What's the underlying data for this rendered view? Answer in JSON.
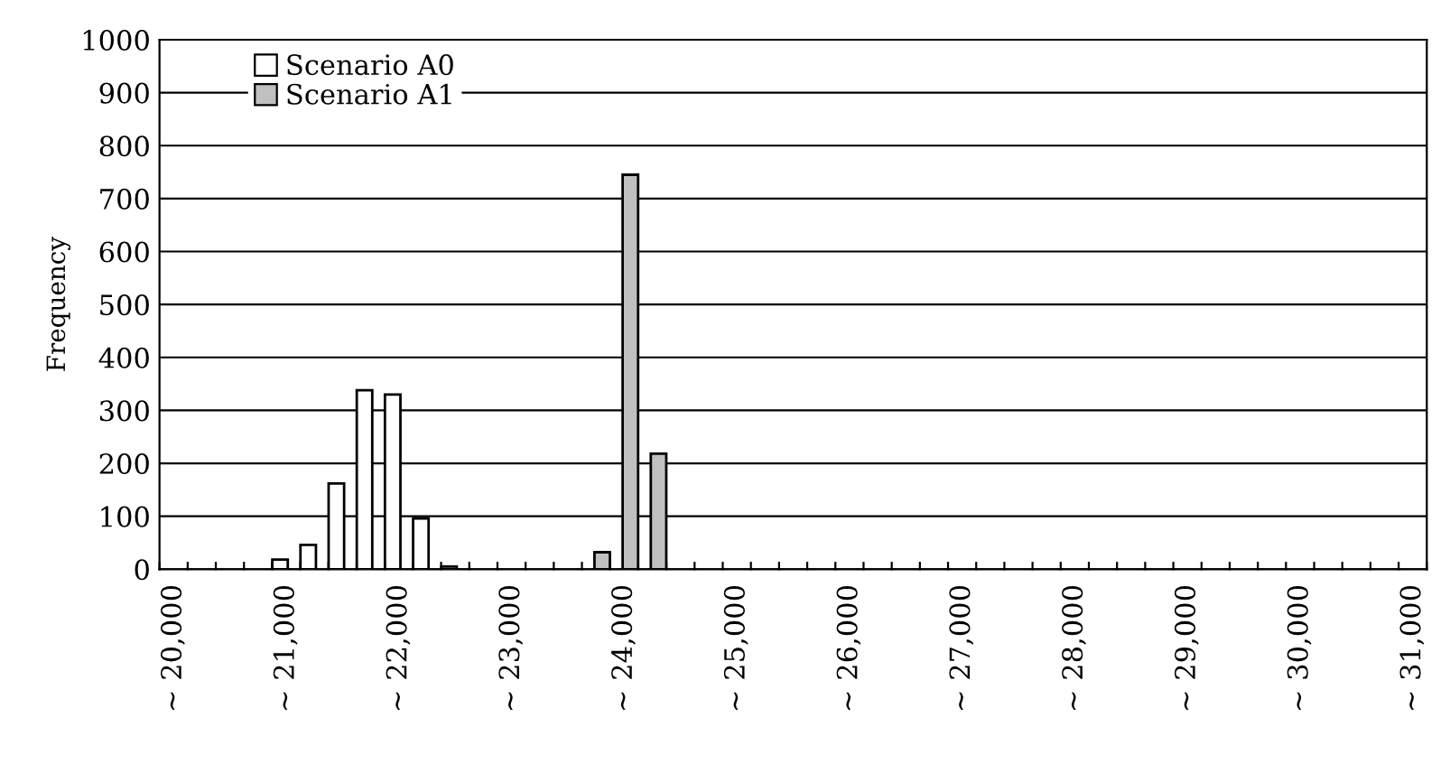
{
  "chart_data": {
    "type": "bar",
    "ylabel": "Frequency",
    "categories": [
      "~ 20,000",
      null,
      null,
      null,
      "~ 21,000",
      null,
      null,
      null,
      "~ 22,000",
      null,
      null,
      null,
      "~ 23,000",
      null,
      null,
      null,
      "~ 24,000",
      null,
      null,
      null,
      "~ 25,000",
      null,
      null,
      null,
      "~ 26,000",
      null,
      null,
      null,
      "~ 27,000",
      null,
      null,
      null,
      "~ 28,000",
      null,
      null,
      null,
      "~ 29,000",
      null,
      null,
      null,
      "~ 30,000",
      null,
      null,
      null,
      "~ 31,000"
    ],
    "series": [
      {
        "name": "Scenario A0",
        "color": "#ffffff",
        "values": [
          null,
          null,
          null,
          null,
          18,
          46,
          162,
          338,
          330,
          96,
          5,
          null,
          null,
          null,
          null,
          null,
          null,
          null,
          null,
          null,
          null,
          null,
          null,
          null,
          null,
          null,
          null,
          null,
          null,
          null,
          null,
          null,
          null,
          null,
          null,
          null,
          null,
          null,
          null,
          null,
          null,
          null,
          null,
          null,
          null
        ]
      },
      {
        "name": "Scenario A1",
        "color": "#c0c0c0",
        "values": [
          null,
          null,
          null,
          null,
          null,
          null,
          null,
          null,
          null,
          null,
          null,
          null,
          null,
          null,
          null,
          32,
          745,
          218,
          null,
          null,
          null,
          null,
          null,
          null,
          null,
          null,
          null,
          null,
          null,
          null,
          null,
          null,
          null,
          null,
          null,
          null,
          null,
          null,
          null,
          null,
          null,
          null,
          null,
          null,
          null
        ]
      }
    ],
    "ylim": [
      0,
      1000
    ],
    "yticks": [
      0,
      100,
      200,
      300,
      400,
      500,
      600,
      700,
      800,
      900,
      1000
    ],
    "grid": "y",
    "legend": "top left"
  }
}
